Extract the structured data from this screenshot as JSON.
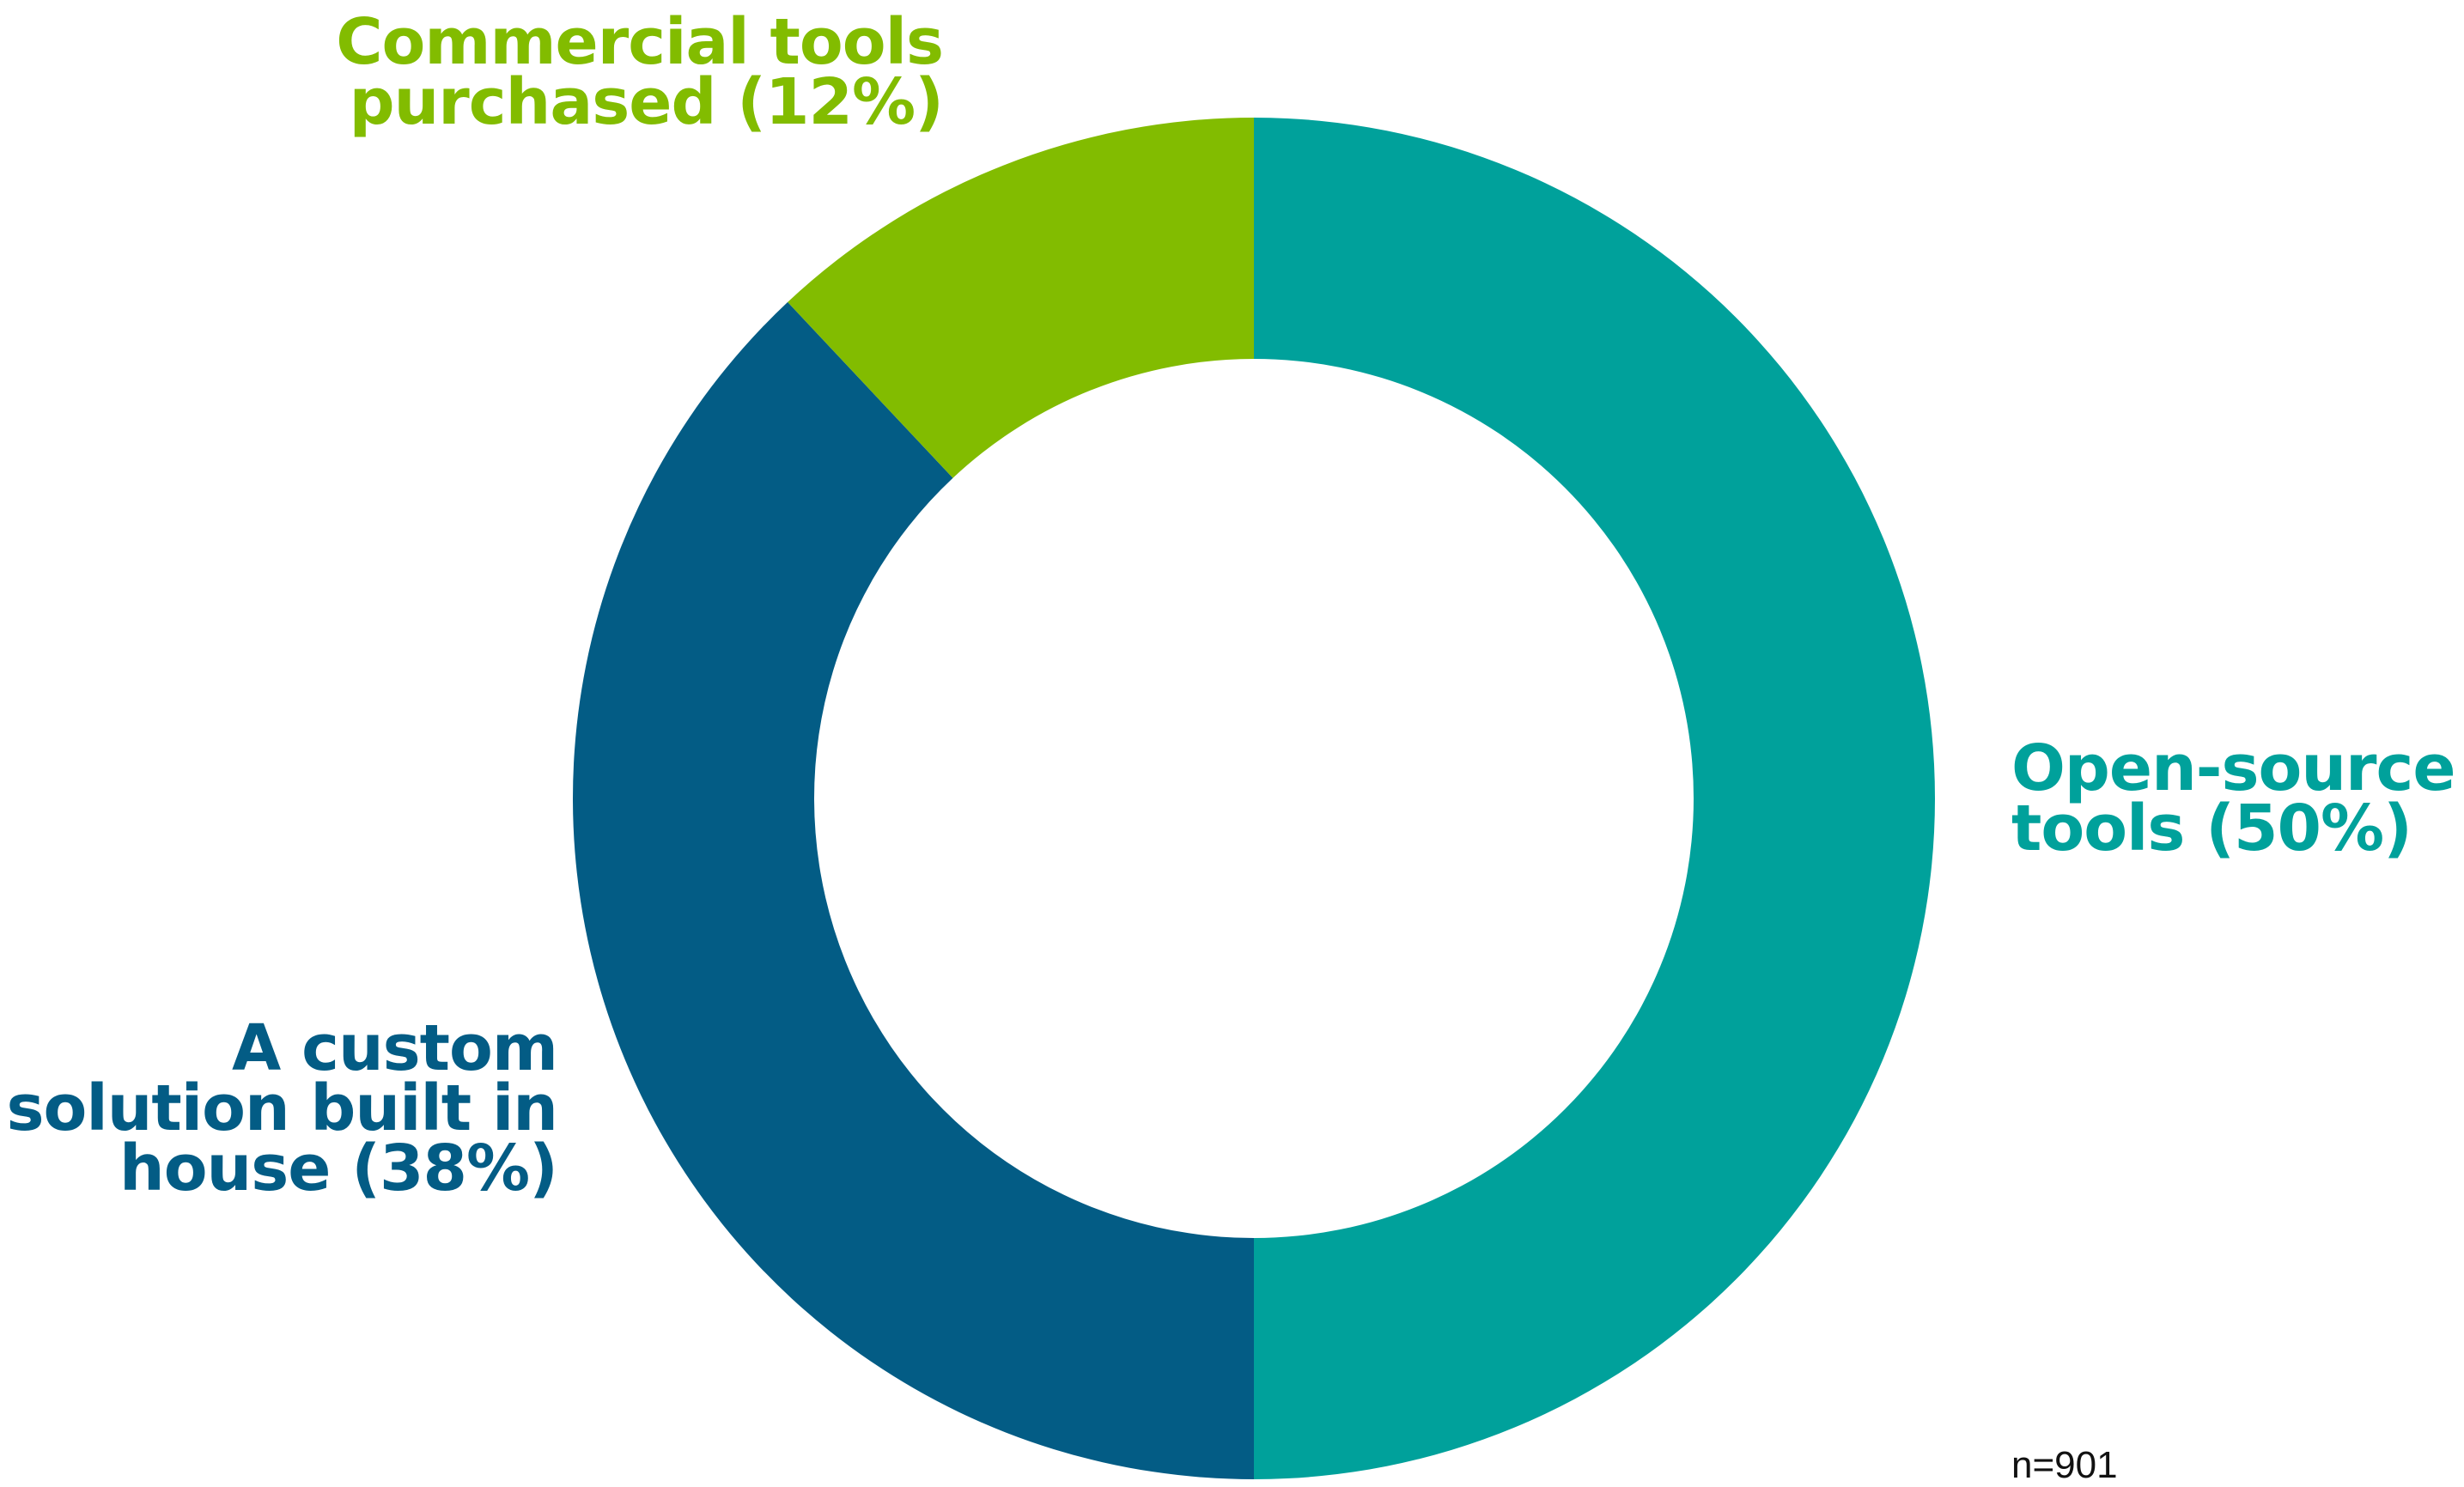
{
  "chart_data": {
    "type": "pie",
    "variant": "donut",
    "categories": [
      "Open-source tools",
      "A custom solution built in house",
      "Commercial tools purchased"
    ],
    "values": [
      50,
      38,
      12
    ],
    "unit": "%",
    "colors": [
      "#00A19B",
      "#035C85",
      "#82BC00"
    ],
    "start_angle_deg": 0,
    "direction": "clockwise",
    "labels": {
      "open_source": [
        "Open-source",
        "tools (50%)"
      ],
      "custom": [
        "A custom",
        "solution built in",
        "house (38%)"
      ],
      "commercial": [
        "Commercial tools",
        "purchased (12%)"
      ]
    },
    "annotation": "n=901"
  }
}
